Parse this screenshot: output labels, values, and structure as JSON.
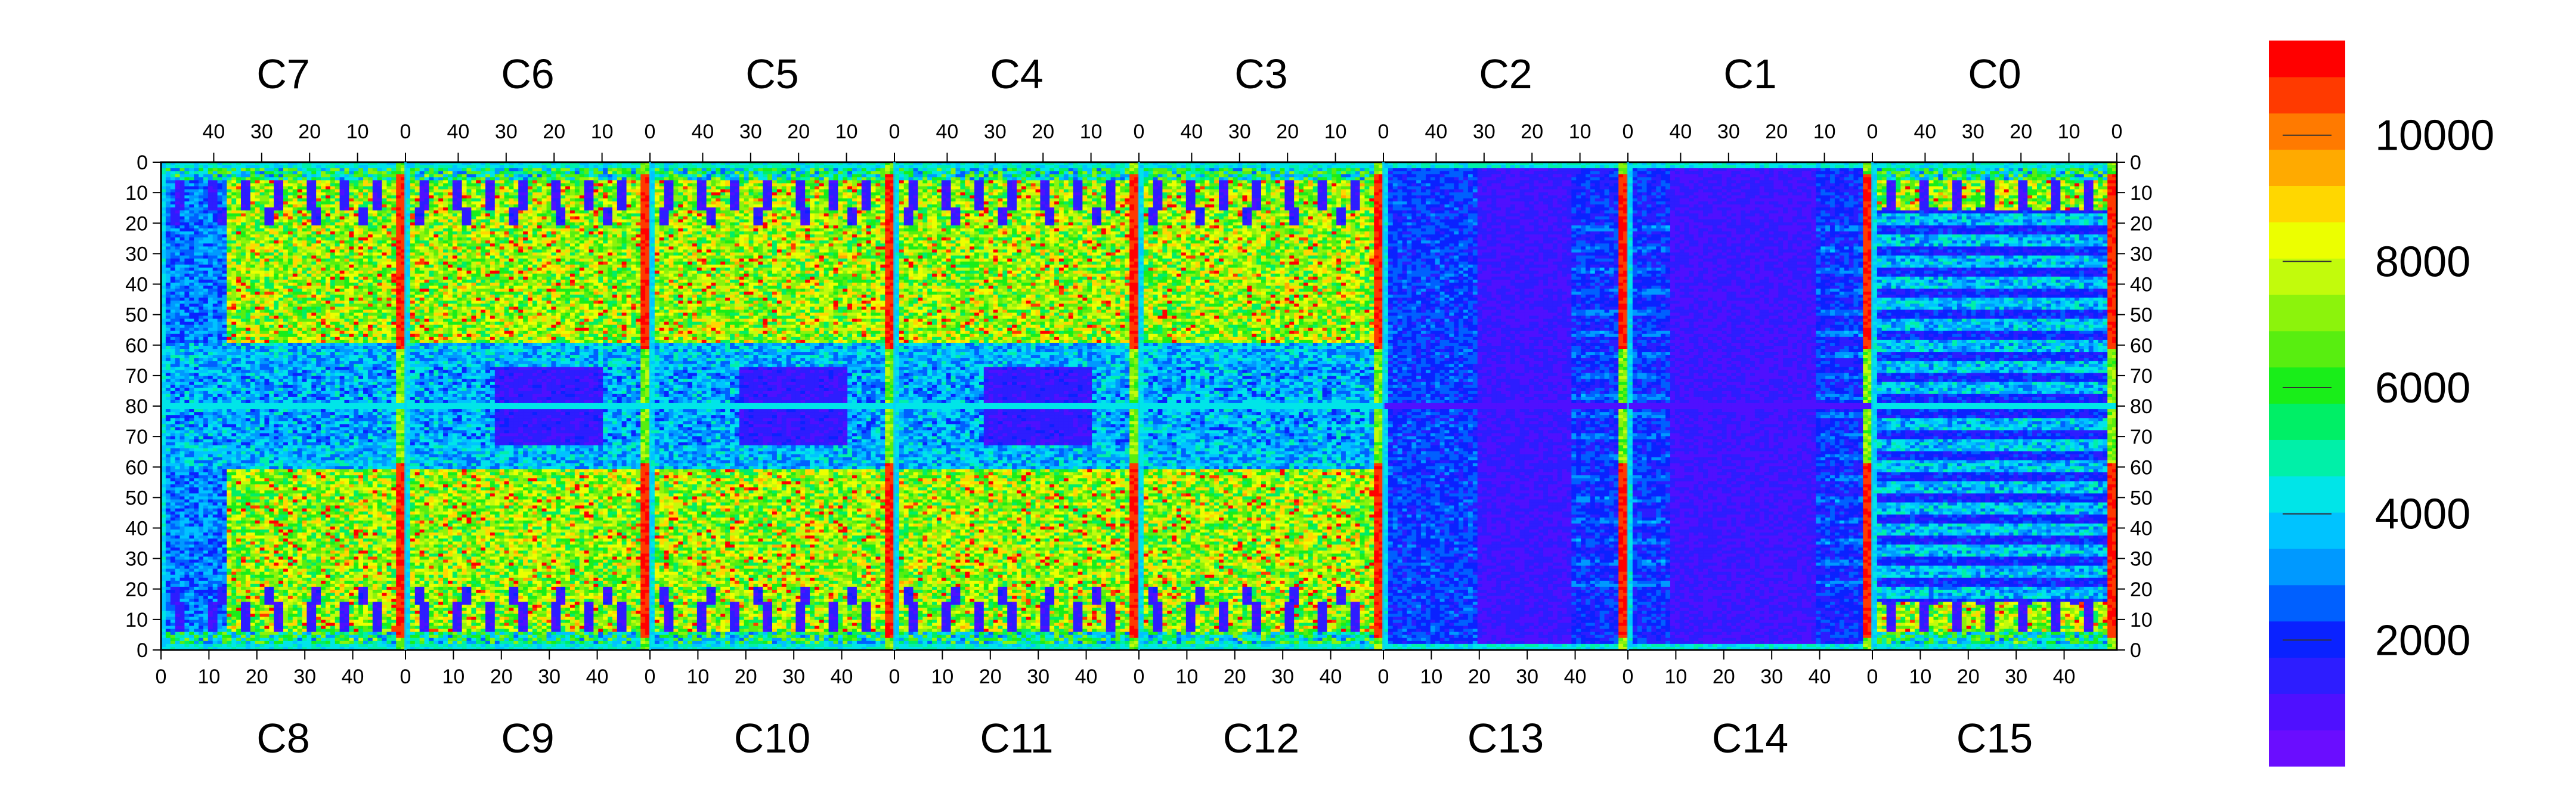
{
  "chart_data": {
    "type": "heatmap",
    "title": "",
    "xlabel": "",
    "ylabel": "",
    "top_chips": [
      "C7",
      "C6",
      "C5",
      "C4",
      "C3",
      "C2",
      "C1",
      "C0"
    ],
    "bottom_chips": [
      "C8",
      "C9",
      "C10",
      "C11",
      "C12",
      "C13",
      "C14",
      "C15"
    ],
    "top_axis_ticks": [
      "40",
      "30",
      "20",
      "10",
      "0"
    ],
    "bottom_axis_ticks": [
      "0",
      "10",
      "20",
      "30",
      "40"
    ],
    "y_ticks": [
      "0",
      "10",
      "20",
      "30",
      "40",
      "50",
      "60",
      "70",
      "80",
      "70",
      "60",
      "50",
      "40",
      "30",
      "20",
      "10",
      "0"
    ],
    "zlim": [
      0,
      11500
    ],
    "colorbar": {
      "ticks": [
        2000,
        4000,
        6000,
        8000,
        10000
      ],
      "tick_labels": [
        "2000",
        "4000",
        "6000",
        "8000",
        "10000"
      ],
      "colors": [
        "#6a0dff",
        "#4f10ff",
        "#2d1dff",
        "#0a22ff",
        "#0060ff",
        "#0099ff",
        "#00c3ff",
        "#00e5e8",
        "#00f0a8",
        "#00ef66",
        "#19ee19",
        "#58ee10",
        "#8cf30c",
        "#c2fb0c",
        "#ecff00",
        "#ffd700",
        "#ffaa00",
        "#ff7a00",
        "#ff3a00",
        "#ff0000"
      ]
    },
    "approx_region_levels": {
      "chip_top_area": "green-yellow (~6000-8000) with scattered red",
      "chip_edge_columns": "red (~10000-11500)",
      "center_row_80": "cyan (~4000)",
      "chip_C13_C2_center": "violet (~500-1500)",
      "chip_C1_C0_C14_C15_lower_rows": "blue-violet stripes (~1000-2500)"
    }
  }
}
